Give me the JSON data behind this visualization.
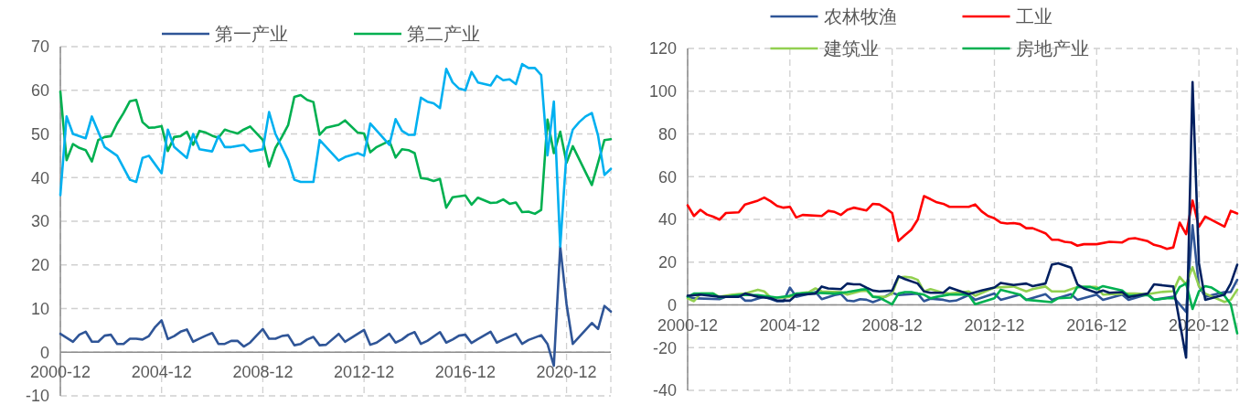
{
  "chart_data": [
    {
      "type": "line",
      "legend": "top",
      "grid": true,
      "xlim": [
        "2000-12",
        "2022-09"
      ],
      "ylim": [
        -10,
        70
      ],
      "xticks": [
        "2000-12",
        "2004-12",
        "2008-12",
        "2012-12",
        "2016-12",
        "2020-12"
      ],
      "yticks": [
        -10,
        0,
        10,
        20,
        30,
        40,
        50,
        60,
        70
      ],
      "series": [
        {
          "name": "第一产业",
          "color": "#2f5597",
          "x": [
            "2000-12",
            "2001-06",
            "2001-09",
            "2001-12",
            "2002-03",
            "2002-06",
            "2002-09",
            "2002-12",
            "2003-03",
            "2003-06",
            "2003-09",
            "2003-12",
            "2004-03",
            "2004-06",
            "2004-09",
            "2004-12",
            "2005-03",
            "2005-06",
            "2005-09",
            "2005-12",
            "2006-03",
            "2006-06",
            "2006-09",
            "2006-12",
            "2007-03",
            "2007-06",
            "2007-09",
            "2007-12",
            "2008-03",
            "2008-06",
            "2008-09",
            "2008-12",
            "2009-03",
            "2009-06",
            "2009-09",
            "2009-12",
            "2010-03",
            "2010-06",
            "2010-09",
            "2010-12",
            "2011-03",
            "2011-06",
            "2011-12",
            "2012-03",
            "2012-09",
            "2012-12",
            "2013-03",
            "2013-06",
            "2013-12",
            "2014-03",
            "2014-06",
            "2014-09",
            "2014-12",
            "2015-03",
            "2015-06",
            "2015-12",
            "2016-03",
            "2016-06",
            "2016-09",
            "2016-12",
            "2017-03",
            "2017-06",
            "2017-12",
            "2018-03",
            "2018-06",
            "2018-12",
            "2019-03",
            "2019-06",
            "2019-12",
            "2020-03",
            "2020-06",
            "2020-09",
            "2020-12",
            "2021-03",
            "2021-12",
            "2022-03",
            "2022-06",
            "2022-09"
          ],
          "values": [
            4.2,
            2.4,
            4,
            4.7,
            2.4,
            2.4,
            3.8,
            4,
            1.9,
            1.9,
            3.1,
            3.1,
            2.9,
            3.7,
            5.8,
            7.3,
            3,
            3.7,
            4.7,
            5.2,
            2.4,
            3.1,
            3.8,
            4.4,
            1.9,
            1.9,
            2.6,
            2.6,
            1.3,
            2.2,
            3.8,
            5.3,
            3.1,
            3.1,
            3.7,
            3.9,
            1.6,
            1.9,
            2.9,
            3.5,
            1.6,
            1.7,
            4.2,
            2.4,
            4.2,
            5.1,
            1.7,
            2.2,
            4.2,
            2.2,
            2.9,
            4,
            4.6,
            1.9,
            2.6,
            4.6,
            2.2,
            2.9,
            3.8,
            4,
            2.1,
            3,
            4.7,
            2.2,
            2.9,
            4.2,
            1.9,
            2.8,
            3.9,
            1.9,
            -3.1,
            24.2,
            11,
            1.9,
            6.7,
            5.3,
            10.6,
            9.3
          ]
        },
        {
          "name": "第二产业",
          "color": "#00b050",
          "x": [
            "2000-12",
            "2001-03",
            "2001-06",
            "2001-09",
            "2001-12",
            "2002-03",
            "2002-06",
            "2002-09",
            "2002-12",
            "2003-03",
            "2003-06",
            "2003-09",
            "2003-12",
            "2004-03",
            "2004-06",
            "2004-09",
            "2004-12",
            "2005-03",
            "2005-06",
            "2005-09",
            "2005-12",
            "2006-03",
            "2006-06",
            "2006-09",
            "2006-12",
            "2007-03",
            "2007-06",
            "2007-09",
            "2007-12",
            "2008-03",
            "2008-06",
            "2008-12",
            "2009-03",
            "2009-06",
            "2009-09",
            "2009-12",
            "2010-03",
            "2010-06",
            "2010-09",
            "2010-12",
            "2011-03",
            "2011-06",
            "2011-12",
            "2012-03",
            "2012-09",
            "2012-12",
            "2013-03",
            "2013-06",
            "2013-12",
            "2014-03",
            "2014-06",
            "2014-09",
            "2014-12",
            "2015-03",
            "2015-06",
            "2015-09",
            "2015-12",
            "2016-03",
            "2016-06",
            "2016-12",
            "2017-03",
            "2017-06",
            "2017-12",
            "2018-03",
            "2018-06",
            "2018-09",
            "2018-12",
            "2019-03",
            "2019-06",
            "2019-09",
            "2019-12",
            "2020-03",
            "2020-06",
            "2020-09",
            "2020-12",
            "2021-03",
            "2021-12",
            "2022-06",
            "2022-09"
          ],
          "values": [
            59.7,
            44,
            47.7,
            46.8,
            46.3,
            43.7,
            48.6,
            49.3,
            49.5,
            52.4,
            54.8,
            57.5,
            57.8,
            52.7,
            51.4,
            51.5,
            51.8,
            46.1,
            49.3,
            49.5,
            50.5,
            47.5,
            50.7,
            50.3,
            49.6,
            49.1,
            51,
            50.5,
            50.1,
            51,
            51.7,
            48.6,
            42.5,
            46.8,
            49.3,
            52,
            58.5,
            58.9,
            57.8,
            57.3,
            49.8,
            51.4,
            52.1,
            53.1,
            50.3,
            50.1,
            45.8,
            47,
            48.4,
            44.6,
            46.5,
            46.3,
            45.6,
            39.9,
            39.7,
            39.2,
            39.7,
            33.1,
            35.5,
            35.9,
            33.8,
            35.4,
            34.2,
            34.3,
            35,
            34,
            34.3,
            32.1,
            32.2,
            31.7,
            32.6,
            53.3,
            45.6,
            50.5,
            43.4,
            47.2,
            38.3,
            48.6,
            48.8
          ]
        },
        {
          "color": "#00b0f0",
          "x": [
            "2000-12",
            "2001-03",
            "2001-06",
            "2001-12",
            "2002-03",
            "2002-09",
            "2002-12",
            "2003-03",
            "2003-09",
            "2003-12",
            "2004-03",
            "2004-06",
            "2004-12",
            "2005-03",
            "2005-06",
            "2005-12",
            "2006-03",
            "2006-06",
            "2006-12",
            "2007-03",
            "2007-06",
            "2007-09",
            "2008-03",
            "2008-06",
            "2008-12",
            "2009-03",
            "2009-06",
            "2009-12",
            "2010-03",
            "2010-06",
            "2010-12",
            "2011-03",
            "2011-12",
            "2012-03",
            "2012-09",
            "2012-12",
            "2013-03",
            "2013-12",
            "2014-03",
            "2014-06",
            "2014-09",
            "2014-12",
            "2015-03",
            "2015-06",
            "2015-09",
            "2015-12",
            "2016-03",
            "2016-06",
            "2016-09",
            "2016-12",
            "2017-03",
            "2017-06",
            "2017-12",
            "2018-03",
            "2018-06",
            "2018-09",
            "2018-12",
            "2019-03",
            "2019-06",
            "2019-09",
            "2019-12",
            "2020-03",
            "2020-06",
            "2020-09",
            "2020-12",
            "2021-03",
            "2021-06",
            "2021-09",
            "2021-12",
            "2022-03",
            "2022-06",
            "2022-09"
          ],
          "values": [
            36,
            54,
            50,
            49,
            54,
            47,
            46,
            45,
            39.5,
            39,
            44.5,
            45,
            41,
            51,
            47,
            44.5,
            50,
            46.5,
            46,
            49.5,
            47,
            47,
            47.5,
            46,
            46.5,
            55,
            50,
            44,
            39.5,
            39,
            39,
            48.6,
            43.9,
            44.7,
            45.6,
            45,
            52.4,
            47.5,
            53.4,
            50.7,
            49.8,
            49.8,
            58.3,
            57.4,
            57,
            55.9,
            64.9,
            61.8,
            60.4,
            60,
            64.2,
            61.8,
            61.1,
            63.3,
            62.3,
            62.5,
            61.4,
            66,
            65.1,
            65.1,
            63.5,
            45.1,
            57.4,
            24.2,
            45.8,
            51,
            52.7,
            54,
            54.8,
            49.6,
            40.6,
            42
          ]
        }
      ]
    },
    {
      "type": "line",
      "legend": "top",
      "grid": true,
      "xlim": [
        "2000-12",
        "2022-06"
      ],
      "ylim": [
        -40,
        120
      ],
      "xticks": [
        "2000-12",
        "2004-12",
        "2008-12",
        "2012-12",
        "2016-12",
        "2020-12"
      ],
      "yticks": [
        -40,
        -20,
        0,
        20,
        40,
        60,
        80,
        100,
        120
      ],
      "series": [
        {
          "name": "农林牧渔",
          "color": "#2f5597",
          "x": [
            "2000-12",
            "2001-03",
            "2002-03",
            "2002-06",
            "2002-12",
            "2003-03",
            "2003-06",
            "2003-12",
            "2004-06",
            "2004-09",
            "2004-12",
            "2005-03",
            "2005-12",
            "2006-03",
            "2006-09",
            "2006-12",
            "2007-03",
            "2007-06",
            "2007-09",
            "2007-12",
            "2008-03",
            "2008-06",
            "2008-12",
            "2009-03",
            "2009-12",
            "2010-03",
            "2010-06",
            "2010-12",
            "2011-03",
            "2011-06",
            "2011-12",
            "2012-03",
            "2012-12",
            "2013-03",
            "2013-12",
            "2014-03",
            "2014-12",
            "2015-03",
            "2015-12",
            "2016-03",
            "2016-12",
            "2017-03",
            "2017-12",
            "2018-03",
            "2018-12",
            "2019-03",
            "2019-12",
            "2020-06",
            "2020-09",
            "2020-12",
            "2021-03",
            "2021-12",
            "2022-03",
            "2022-06"
          ],
          "values": [
            3.8,
            3.1,
            2.7,
            3.8,
            4.6,
            2,
            2,
            3.8,
            1.7,
            1.7,
            8.1,
            3.8,
            6,
            2.7,
            4.6,
            5.1,
            2,
            1.7,
            2.7,
            2.4,
            1.3,
            2.4,
            5.7,
            4.6,
            5.3,
            1.7,
            2.9,
            2.4,
            1.7,
            2,
            4.6,
            2.4,
            5.3,
            2.4,
            4.8,
            2.4,
            5,
            2.4,
            5,
            2.4,
            4.8,
            2.4,
            4.8,
            2.4,
            5,
            2.4,
            3.8,
            -3.3,
            37.3,
            8.8,
            3.8,
            6,
            6,
            11.7
          ]
        },
        {
          "name": "工业",
          "color": "#ff0000",
          "x": [
            "2000-12",
            "2001-03",
            "2001-06",
            "2001-09",
            "2001-12",
            "2002-03",
            "2002-06",
            "2002-12",
            "2003-03",
            "2003-09",
            "2003-12",
            "2004-03",
            "2004-06",
            "2004-09",
            "2004-12",
            "2005-03",
            "2005-06",
            "2006-03",
            "2006-06",
            "2006-09",
            "2006-12",
            "2007-03",
            "2007-06",
            "2007-12",
            "2008-03",
            "2008-06",
            "2008-09",
            "2008-12",
            "2009-03",
            "2009-06",
            "2009-09",
            "2009-12",
            "2010-03",
            "2010-06",
            "2010-09",
            "2010-12",
            "2011-03",
            "2011-06",
            "2011-12",
            "2012-03",
            "2012-06",
            "2012-09",
            "2012-12",
            "2013-03",
            "2013-06",
            "2013-09",
            "2013-12",
            "2014-03",
            "2014-06",
            "2014-12",
            "2015-03",
            "2015-06",
            "2015-09",
            "2015-12",
            "2016-03",
            "2016-06",
            "2016-12",
            "2017-06",
            "2017-12",
            "2018-03",
            "2018-06",
            "2018-12",
            "2019-03",
            "2019-06",
            "2019-09",
            "2019-12",
            "2020-03",
            "2020-06",
            "2020-09",
            "2020-12",
            "2021-03",
            "2021-12",
            "2022-03",
            "2022-06"
          ],
          "values": [
            46.6,
            41.6,
            44.5,
            42.3,
            41.3,
            39.9,
            43,
            43.3,
            47,
            48.8,
            50.2,
            48.5,
            46.3,
            45.5,
            45.9,
            40.9,
            42.1,
            41.6,
            44,
            43.5,
            42.1,
            44.5,
            45.5,
            44.2,
            47.3,
            47,
            45.2,
            43,
            29.9,
            32.6,
            35.2,
            39.9,
            50.9,
            49.5,
            48,
            47.3,
            45.9,
            45.9,
            45.9,
            47,
            43.8,
            41.6,
            40.5,
            38.5,
            38.1,
            38.3,
            37.8,
            35.9,
            35.9,
            33.5,
            30.5,
            30.5,
            29.5,
            29.2,
            27.7,
            28.4,
            28.4,
            29.5,
            29.2,
            30.9,
            31.2,
            29.8,
            28.1,
            27.4,
            26.2,
            26.9,
            38.5,
            33.1,
            48.8,
            36.6,
            41.3,
            36.6,
            44,
            42.8
          ]
        },
        {
          "name": "建筑业",
          "color": "#92d050",
          "x": [
            "2000-12",
            "2001-03",
            "2001-06",
            "2001-12",
            "2002-03",
            "2002-09",
            "2003-03",
            "2003-09",
            "2003-12",
            "2004-03",
            "2004-09",
            "2004-12",
            "2005-06",
            "2005-09",
            "2005-12",
            "2006-03",
            "2006-12",
            "2007-03",
            "2007-09",
            "2007-12",
            "2008-03",
            "2008-09",
            "2008-12",
            "2009-03",
            "2009-06",
            "2009-09",
            "2009-12",
            "2010-03",
            "2010-06",
            "2010-12",
            "2011-03",
            "2011-12",
            "2012-03",
            "2012-12",
            "2013-06",
            "2013-09",
            "2014-03",
            "2014-06",
            "2014-12",
            "2015-03",
            "2015-09",
            "2016-03",
            "2016-09",
            "2016-12",
            "2017-03",
            "2017-12",
            "2018-06",
            "2018-12",
            "2019-06",
            "2019-12",
            "2020-03",
            "2020-06",
            "2020-09",
            "2020-12",
            "2021-03",
            "2021-12",
            "2022-03",
            "2022-06"
          ],
          "values": [
            3.1,
            1.7,
            5.3,
            5.3,
            3.8,
            4.8,
            5.3,
            7.1,
            6.3,
            3.4,
            3.4,
            3.8,
            5.7,
            6,
            7.7,
            6.3,
            6,
            4.8,
            6.4,
            6.7,
            3.8,
            3.8,
            5.3,
            12.8,
            13.1,
            12.8,
            11.7,
            6.3,
            7.4,
            5.7,
            5.3,
            6.3,
            4.3,
            8.1,
            8.4,
            8.6,
            6.3,
            7.4,
            8.6,
            6.3,
            6.3,
            8.4,
            8.4,
            8.4,
            4.8,
            5.3,
            5.3,
            5,
            6,
            6.4,
            13.1,
            9.6,
            17.7,
            8.8,
            5.3,
            1.4,
            2.4,
            7.1
          ]
        },
        {
          "name": "房地产业",
          "color": "#00b050",
          "x": [
            "2000-12",
            "2001-03",
            "2001-12",
            "2002-03",
            "2002-12",
            "2003-09",
            "2004-06",
            "2004-12",
            "2005-03",
            "2005-12",
            "2006-09",
            "2007-03",
            "2007-09",
            "2007-12",
            "2008-03",
            "2008-06",
            "2008-12",
            "2009-03",
            "2009-06",
            "2009-09",
            "2009-12",
            "2010-03",
            "2010-06",
            "2010-09",
            "2011-03",
            "2011-09",
            "2011-12",
            "2012-03",
            "2012-12",
            "2013-03",
            "2013-12",
            "2014-03",
            "2015-03",
            "2015-06",
            "2015-12",
            "2016-03",
            "2016-09",
            "2016-12",
            "2017-03",
            "2017-12",
            "2018-03",
            "2018-12",
            "2019-03",
            "2019-09",
            "2019-12",
            "2020-03",
            "2020-06",
            "2020-09",
            "2020-12",
            "2021-03",
            "2021-06",
            "2021-12",
            "2022-03",
            "2022-06"
          ],
          "values": [
            3.8,
            5.3,
            5.3,
            3.4,
            4.6,
            4.6,
            3.4,
            4.3,
            5.3,
            5.7,
            5.3,
            6,
            7.1,
            7.4,
            3.8,
            3.4,
            0.3,
            5.3,
            6,
            6,
            5.3,
            4.8,
            3.1,
            3.8,
            4.8,
            4.8,
            4.6,
            0.3,
            3.1,
            7.1,
            4.8,
            2.4,
            1.3,
            3.1,
            3.4,
            8.4,
            8.4,
            7.4,
            8.8,
            6.7,
            4.3,
            4.6,
            2.4,
            3.1,
            3.1,
            8.4,
            10,
            -1.9,
            6.3,
            8.8,
            8.1,
            4.3,
            0.3,
            -13.3
          ]
        },
        {
          "color": "#002060",
          "x": [
            "2000-12",
            "2001-06",
            "2002-03",
            "2002-12",
            "2003-03",
            "2003-09",
            "2004-03",
            "2004-06",
            "2004-12",
            "2005-03",
            "2005-12",
            "2006-03",
            "2006-06",
            "2006-12",
            "2007-03",
            "2007-06",
            "2007-09",
            "2007-12",
            "2008-03",
            "2008-06",
            "2008-12",
            "2009-03",
            "2009-06",
            "2009-12",
            "2010-03",
            "2010-06",
            "2010-12",
            "2011-03",
            "2011-12",
            "2012-06",
            "2012-12",
            "2013-03",
            "2013-09",
            "2014-03",
            "2014-06",
            "2014-12",
            "2015-03",
            "2015-06",
            "2015-12",
            "2016-03",
            "2016-06",
            "2016-12",
            "2017-03",
            "2017-06",
            "2017-12",
            "2018-03",
            "2018-12",
            "2019-03",
            "2019-12",
            "2020-06",
            "2020-09",
            "2020-12",
            "2021-03",
            "2021-12",
            "2022-03",
            "2022-06"
          ],
          "values": [
            4.3,
            4.8,
            3.8,
            3.8,
            5.3,
            3.8,
            3.1,
            2,
            2,
            4.6,
            5.3,
            8.6,
            7.7,
            7.4,
            10,
            9.6,
            9.6,
            8.1,
            6.7,
            6.3,
            6.7,
            13.4,
            12.1,
            10,
            6.3,
            5.7,
            5.7,
            8.1,
            5,
            6.7,
            8.1,
            10.3,
            9.3,
            10,
            8.8,
            10,
            18.8,
            19.5,
            17.4,
            9.6,
            7.7,
            5.7,
            6.7,
            5.7,
            6,
            3.6,
            5.3,
            9.6,
            8.6,
            -24.7,
            104.3,
            19.5,
            2.4,
            4.8,
            10,
            18.8
          ]
        }
      ]
    }
  ]
}
